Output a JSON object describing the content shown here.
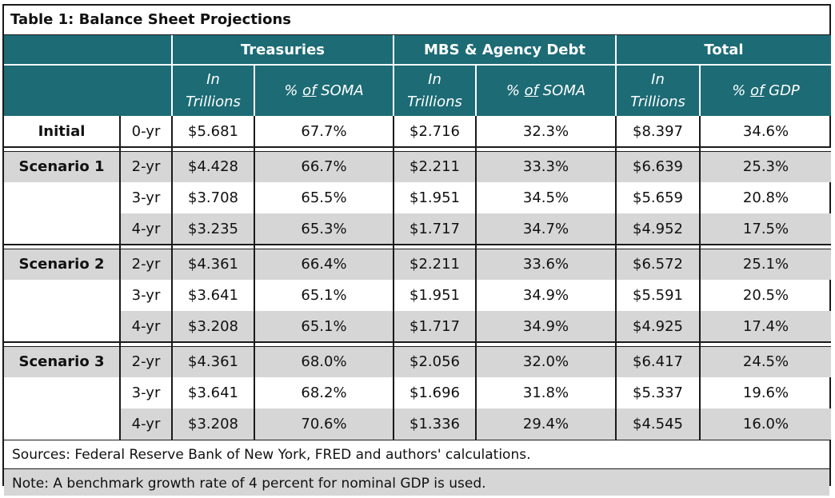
{
  "title": "Table 1: Balance Sheet Projections",
  "groups": {
    "treasuries": "Treasuries",
    "mbs": "MBS & Agency Debt",
    "total": "Total"
  },
  "subheaders": {
    "in": "In",
    "trillions": "Trillions",
    "pct_prefix": "% ",
    "of": "of",
    "soma": " SOMA",
    "gdp": " GDP"
  },
  "rows": [
    {
      "label": "Initial",
      "term": "0-yr",
      "t_tril": "$5.681",
      "t_pct": "67.7%",
      "m_tril": "$2.716",
      "m_pct": "32.3%",
      "tot_tril": "$8.397",
      "tot_pct": "34.6%"
    },
    {
      "label": "Scenario 1",
      "term": "2-yr",
      "t_tril": "$4.428",
      "t_pct": "66.7%",
      "m_tril": "$2.211",
      "m_pct": "33.3%",
      "tot_tril": "$6.639",
      "tot_pct": "25.3%"
    },
    {
      "label": "",
      "term": "3-yr",
      "t_tril": "$3.708",
      "t_pct": "65.5%",
      "m_tril": "$1.951",
      "m_pct": "34.5%",
      "tot_tril": "$5.659",
      "tot_pct": "20.8%"
    },
    {
      "label": "",
      "term": "4-yr",
      "t_tril": "$3.235",
      "t_pct": "65.3%",
      "m_tril": "$1.717",
      "m_pct": "34.7%",
      "tot_tril": "$4.952",
      "tot_pct": "17.5%"
    },
    {
      "label": "Scenario 2",
      "term": "2-yr",
      "t_tril": "$4.361",
      "t_pct": "66.4%",
      "m_tril": "$2.211",
      "m_pct": "33.6%",
      "tot_tril": "$6.572",
      "tot_pct": "25.1%"
    },
    {
      "label": "",
      "term": "3-yr",
      "t_tril": "$3.641",
      "t_pct": "65.1%",
      "m_tril": "$1.951",
      "m_pct": "34.9%",
      "tot_tril": "$5.591",
      "tot_pct": "20.5%"
    },
    {
      "label": "",
      "term": "4-yr",
      "t_tril": "$3.208",
      "t_pct": "65.1%",
      "m_tril": "$1.717",
      "m_pct": "34.9%",
      "tot_tril": "$4.925",
      "tot_pct": "17.4%"
    },
    {
      "label": "Scenario 3",
      "term": "2-yr",
      "t_tril": "$4.361",
      "t_pct": "68.0%",
      "m_tril": "$2.056",
      "m_pct": "32.0%",
      "tot_tril": "$6.417",
      "tot_pct": "24.5%"
    },
    {
      "label": "",
      "term": "3-yr",
      "t_tril": "$3.641",
      "t_pct": "68.2%",
      "m_tril": "$1.696",
      "m_pct": "31.8%",
      "tot_tril": "$5.337",
      "tot_pct": "19.6%"
    },
    {
      "label": "",
      "term": "4-yr",
      "t_tril": "$3.208",
      "t_pct": "70.6%",
      "m_tril": "$1.336",
      "m_pct": "29.4%",
      "tot_tril": "$4.545",
      "tot_pct": "16.0%"
    }
  ],
  "sources": "Sources: Federal Reserve Bank of New York, FRED and authors' calculations.",
  "note": "Note: A benchmark growth rate of 4 percent for nominal GDP is used.",
  "colors": {
    "header_bg": "#1c6b75",
    "header_text": "#ffffff",
    "shaded_row": "#d6d6d6"
  }
}
